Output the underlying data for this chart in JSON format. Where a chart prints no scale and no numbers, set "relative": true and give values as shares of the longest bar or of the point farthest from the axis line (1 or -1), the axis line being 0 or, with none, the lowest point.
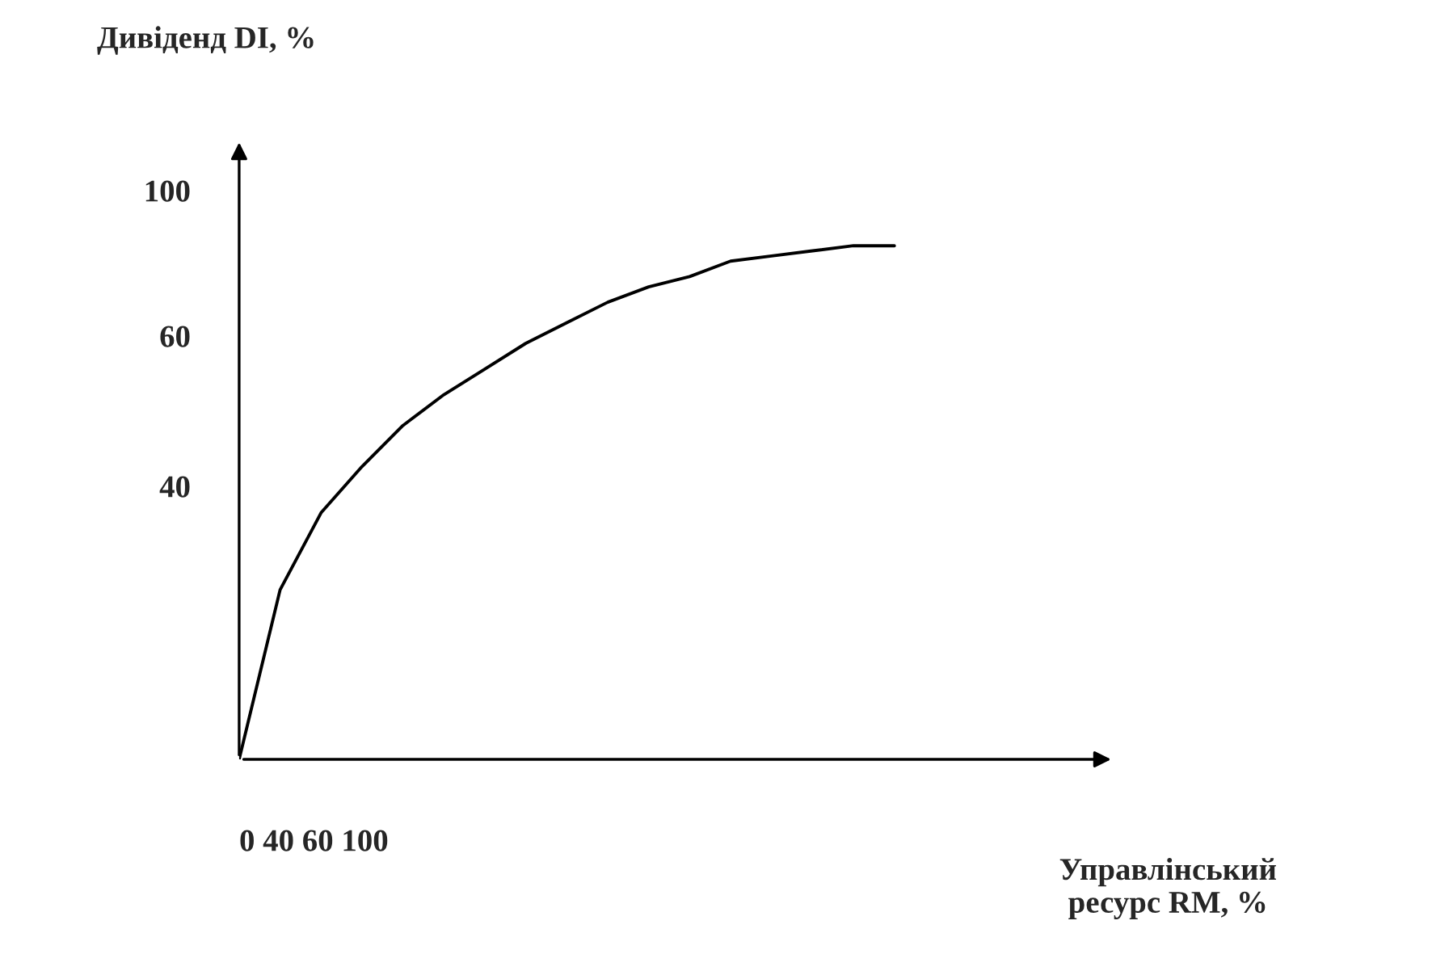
{
  "chart_data": {
    "type": "line",
    "relative": true,
    "color": "#000000",
    "annotations": [
      "100",
      "60",
      "40",
      "0 40 60 100",
      "Дивіденд DI, %",
      "Управлінський\nресурс RM, %"
    ],
    "categories": [
      null,
      null,
      null,
      null,
      null,
      null,
      null,
      null,
      null,
      null,
      null,
      null,
      null,
      null,
      null,
      null,
      null
    ],
    "values": [
      0,
      0.33,
      0.48,
      0.57,
      0.65,
      0.71,
      0.76,
      0.81,
      0.85,
      0.89,
      0.92,
      0.94,
      0.97,
      0.98,
      0.99,
      1.0,
      1.0
    ],
    "marker": "none",
    "line_style": "solid"
  }
}
